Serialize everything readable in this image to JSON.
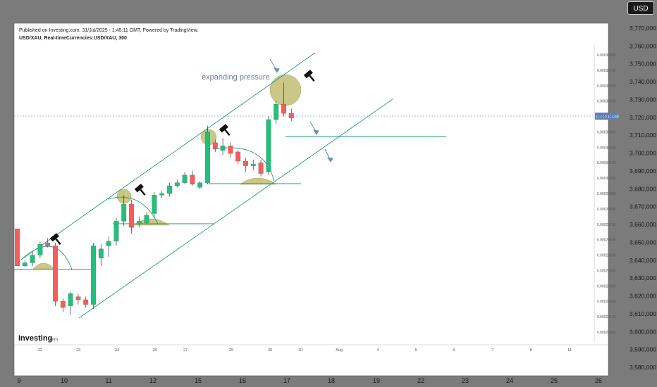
{
  "currency_badge": "USD",
  "header": {
    "published": "Published on Investing.com, 31/Jul/2025 - 1:45:11 GMT, Powered by TradingView.",
    "symbol": "USD/XAU, Real-timeCurrencies:USD/XAU, 300"
  },
  "annotation": {
    "text": "expanding pressure"
  },
  "logo": {
    "main": "Investing",
    "suffix": ".com"
  },
  "inner_price_tag": "0.00030400",
  "chart_data": {
    "type": "candlestick",
    "inner_y_axis": {
      "labels": [
        "0.00030800",
        "0.00030700",
        "0.00030600",
        "0.00030500",
        "0.00030400",
        "0.00030300",
        "0.00030200",
        "0.00030100",
        "0.00030000",
        "0.00029900",
        "0.00029800",
        "0.00029700",
        "0.00029600",
        "0.00029500",
        "0.00029400",
        "0.00029300",
        "0.00029200",
        "0.00029100",
        "0.00029000"
      ],
      "range": [
        0.0002899,
        0.0003086
      ]
    },
    "inner_x_axis": {
      "labels": [
        "22",
        "23",
        "24",
        "25",
        "27",
        "29",
        "30",
        "31",
        "Aug",
        "4",
        "5",
        "6",
        "7",
        "8",
        "11"
      ]
    },
    "outer_y_axis": {
      "labels": [
        "3,770,000",
        "3,760,000",
        "3,750,000",
        "3,740,000",
        "3,730,000",
        "3,720,000",
        "3,710,000",
        "3,700,000",
        "3,690,000",
        "3,680,000",
        "3,670,000",
        "3,660,000",
        "3,650,000",
        "3,640,000",
        "3,630,000",
        "3,620,000",
        "3,610,000",
        "3,600,000",
        "3,590,000",
        "3,580,000"
      ]
    },
    "outer_x_axis": {
      "labels": [
        "9",
        "10",
        "11",
        "12",
        "15",
        "16",
        "17",
        "18",
        "19",
        "22",
        "23",
        "24",
        "25",
        "26"
      ]
    },
    "candles": [
      {
        "o": 0.0002967,
        "h": 0.0002967,
        "l": 0.0002943,
        "c": 0.0002943
      },
      {
        "o": 0.0002943,
        "h": 0.0002947,
        "l": 0.0002942,
        "c": 0.0002945
      },
      {
        "o": 0.0002945,
        "h": 0.0002952,
        "l": 0.0002943,
        "c": 0.000295
      },
      {
        "o": 0.000295,
        "h": 0.0002959,
        "l": 0.0002948,
        "c": 0.0002957
      },
      {
        "o": 0.0002958,
        "h": 0.0002961,
        "l": 0.0002955,
        "c": 0.0002956
      },
      {
        "o": 0.0002956,
        "h": 0.0002958,
        "l": 0.0002917,
        "c": 0.000292
      },
      {
        "o": 0.000292,
        "h": 0.0002922,
        "l": 0.0002913,
        "c": 0.0002916
      },
      {
        "o": 0.0002917,
        "h": 0.0002926,
        "l": 0.0002911,
        "c": 0.0002925
      },
      {
        "o": 0.0002923,
        "h": 0.0002925,
        "l": 0.0002918,
        "c": 0.0002921
      },
      {
        "o": 0.0002921,
        "h": 0.0002923,
        "l": 0.0002916,
        "c": 0.0002918
      },
      {
        "o": 0.0002918,
        "h": 0.0002958,
        "l": 0.0002915,
        "c": 0.0002956
      },
      {
        "o": 0.0002948,
        "h": 0.0002957,
        "l": 0.0002943,
        "c": 0.0002954
      },
      {
        "o": 0.0002956,
        "h": 0.0002962,
        "l": 0.0002949,
        "c": 0.0002959
      },
      {
        "o": 0.0002959,
        "h": 0.0002974,
        "l": 0.0002956,
        "c": 0.0002972
      },
      {
        "o": 0.0002972,
        "h": 0.0002989,
        "l": 0.0002969,
        "c": 0.0002983
      },
      {
        "o": 0.0002983,
        "h": 0.0002986,
        "l": 0.0002964,
        "c": 0.0002968
      },
      {
        "o": 0.000297,
        "h": 0.0002975,
        "l": 0.0002968,
        "c": 0.0002972
      },
      {
        "o": 0.0002971,
        "h": 0.0002978,
        "l": 0.000297,
        "c": 0.0002976
      },
      {
        "o": 0.0002977,
        "h": 0.0002991,
        "l": 0.0002975,
        "c": 0.0002989
      },
      {
        "o": 0.0002989,
        "h": 0.0002992,
        "l": 0.0002987,
        "c": 0.000299
      },
      {
        "o": 0.000299,
        "h": 0.0002997,
        "l": 0.0002988,
        "c": 0.0002995
      },
      {
        "o": 0.0002995,
        "h": 0.0002999,
        "l": 0.0002994,
        "c": 0.0002997
      },
      {
        "o": 0.0002997,
        "h": 0.0003004,
        "l": 0.0002996,
        "c": 0.0003002
      },
      {
        "o": 0.0003002,
        "h": 0.0003005,
        "l": 0.0002995,
        "c": 0.0002996
      },
      {
        "o": 0.0002994,
        "h": 0.0002998,
        "l": 0.0002993,
        "c": 0.0002997
      },
      {
        "o": 0.0002997,
        "h": 0.0003034,
        "l": 0.0002996,
        "c": 0.000303
      },
      {
        "o": 0.0003023,
        "h": 0.0003025,
        "l": 0.0003017,
        "c": 0.0003019
      },
      {
        "o": 0.0003018,
        "h": 0.0003026,
        "l": 0.0003015,
        "c": 0.0003021
      },
      {
        "o": 0.0003021,
        "h": 0.0003023,
        "l": 0.0003013,
        "c": 0.0003016
      },
      {
        "o": 0.0003017,
        "h": 0.0003018,
        "l": 0.0003009,
        "c": 0.0003011
      },
      {
        "o": 0.0003011,
        "h": 0.0003013,
        "l": 0.0003004,
        "c": 0.0003008
      },
      {
        "o": 0.0003008,
        "h": 0.0003012,
        "l": 0.0003005,
        "c": 0.0003009
      },
      {
        "o": 0.000301,
        "h": 0.0003012,
        "l": 0.0003001,
        "c": 0.0003003
      },
      {
        "o": 0.0003004,
        "h": 0.000304,
        "l": 0.0003002,
        "c": 0.0003038
      },
      {
        "o": 0.0003038,
        "h": 0.000305,
        "l": 0.0003035,
        "c": 0.0003048
      },
      {
        "o": 0.0003048,
        "h": 0.0003062,
        "l": 0.000304,
        "c": 0.0003042
      },
      {
        "o": 0.0003042,
        "h": 0.0003045,
        "l": 0.0003037,
        "c": 0.0003039
      }
    ],
    "colors": {
      "up": "#22c07a",
      "down": "#f25f5c",
      "channel": "#1d9b81",
      "highlight": "#bdb96a",
      "hammer": "#111111",
      "arrow": "#6a8fb0"
    }
  }
}
